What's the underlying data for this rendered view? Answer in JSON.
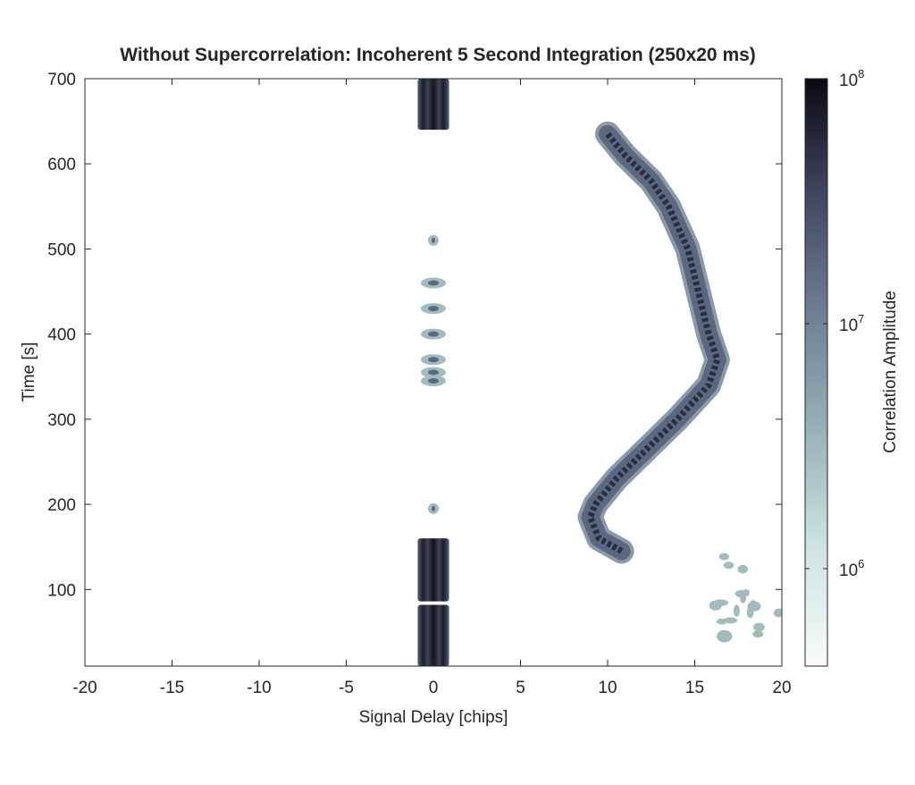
{
  "chart_data": {
    "type": "heatmap",
    "title": "Without Supercorrelation: Incoherent 5 Second Integration (250x20 ms)",
    "xlabel": "Signal Delay [chips]",
    "ylabel": "Time [s]",
    "xlim": [
      -20,
      20
    ],
    "ylim": [
      10,
      700
    ],
    "x_ticks": [
      -20,
      -15,
      -10,
      -5,
      0,
      5,
      10,
      15,
      20
    ],
    "y_ticks": [
      100,
      200,
      300,
      400,
      500,
      600,
      700
    ],
    "colorbar": {
      "label": "Correlation Amplitude",
      "scale": "log",
      "range": [
        400000,
        100000000
      ],
      "ticks": [
        {
          "base": "10",
          "exp": "6",
          "value": 1000000
        },
        {
          "base": "10",
          "exp": "7",
          "value": 10000000
        },
        {
          "base": "10",
          "exp": "8",
          "value": 100000000
        }
      ]
    },
    "grid": false,
    "features": [
      {
        "name": "line-of-sight peak (top)",
        "delay_center": 0,
        "delay_halfwidth": 0.9,
        "time_range": [
          640,
          700
        ],
        "amplitude": 80000000
      },
      {
        "name": "line-of-sight peak (bottom, upper part)",
        "delay_center": 0,
        "delay_halfwidth": 0.9,
        "time_range": [
          86,
          160
        ],
        "amplitude": 80000000
      },
      {
        "name": "line-of-sight peak (bottom, lower part)",
        "delay_center": 0,
        "delay_halfwidth": 0.9,
        "time_range": [
          10,
          82
        ],
        "amplitude": 80000000
      },
      {
        "name": "intermittent peak blobs",
        "delay_center": 0,
        "time_points": [
          510,
          460,
          430,
          400,
          370,
          355,
          345,
          195
        ],
        "amplitude": 3000000
      },
      {
        "name": "multipath arc",
        "path": [
          {
            "t": 145,
            "delay": 10.8
          },
          {
            "t": 160,
            "delay": 9.5
          },
          {
            "t": 175,
            "delay": 9.2
          },
          {
            "t": 185,
            "delay": 9.0
          },
          {
            "t": 200,
            "delay": 9.3
          },
          {
            "t": 230,
            "delay": 10.5
          },
          {
            "t": 260,
            "delay": 12.0
          },
          {
            "t": 300,
            "delay": 14.0
          },
          {
            "t": 340,
            "delay": 15.8
          },
          {
            "t": 370,
            "delay": 16.3
          },
          {
            "t": 400,
            "delay": 15.8
          },
          {
            "t": 450,
            "delay": 15.2
          },
          {
            "t": 500,
            "delay": 14.6
          },
          {
            "t": 550,
            "delay": 13.5
          },
          {
            "t": 580,
            "delay": 12.5
          },
          {
            "t": 610,
            "delay": 11.0
          },
          {
            "t": 635,
            "delay": 10.0
          }
        ],
        "amplitude": 20000000
      },
      {
        "name": "noise speckles",
        "delay_range": [
          16,
          20
        ],
        "time_range": [
          40,
          140
        ],
        "amplitude": 3000000
      }
    ]
  }
}
